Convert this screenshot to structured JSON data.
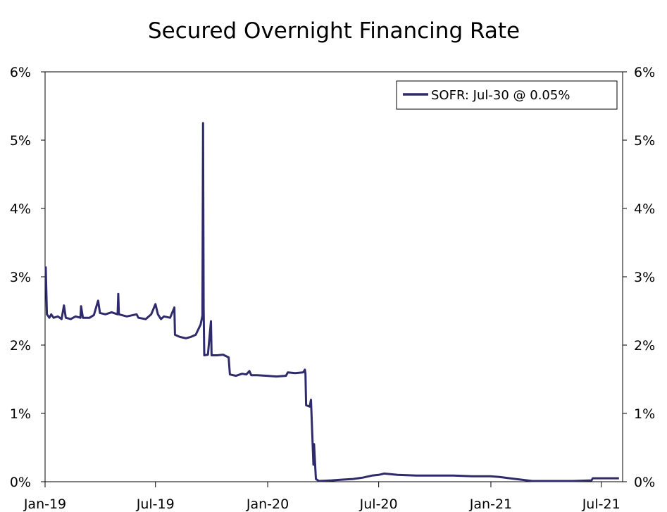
{
  "chart_data": {
    "type": "line",
    "title": "Secured Overnight Financing Rate",
    "xlabel": "",
    "ylabel": "",
    "x_ticks": [
      "Jan-19",
      "Jul-19",
      "Jan-20",
      "Jul-20",
      "Jan-21",
      "Jul-21"
    ],
    "x_tick_dates": [
      "2019-01-01",
      "2019-07-01",
      "2020-01-01",
      "2020-07-01",
      "2021-01-01",
      "2021-07-01"
    ],
    "xlim": [
      "2019-01-01",
      "2021-08-05"
    ],
    "y_ticks": [
      "0%",
      "1%",
      "2%",
      "3%",
      "4%",
      "5%",
      "6%"
    ],
    "ylim": [
      0,
      6
    ],
    "y_axis_right": true,
    "grid": false,
    "legend_position": "top-right",
    "legend": {
      "label": "SOFR: Jul-30 @ 0.05%"
    },
    "series": [
      {
        "name": "SOFR",
        "color": "#2e2a6b",
        "points": [
          [
            "2019-01-02",
            3.15
          ],
          [
            "2019-01-04",
            2.45
          ],
          [
            "2019-01-08",
            2.4
          ],
          [
            "2019-01-11",
            2.45
          ],
          [
            "2019-01-15",
            2.4
          ],
          [
            "2019-01-22",
            2.42
          ],
          [
            "2019-01-28",
            2.38
          ],
          [
            "2019-02-01",
            2.58
          ],
          [
            "2019-02-04",
            2.4
          ],
          [
            "2019-02-12",
            2.38
          ],
          [
            "2019-02-20",
            2.42
          ],
          [
            "2019-02-28",
            2.4
          ],
          [
            "2019-03-01",
            2.57
          ],
          [
            "2019-03-04",
            2.4
          ],
          [
            "2019-03-15",
            2.4
          ],
          [
            "2019-03-22",
            2.44
          ],
          [
            "2019-03-29",
            2.65
          ],
          [
            "2019-04-01",
            2.47
          ],
          [
            "2019-04-10",
            2.45
          ],
          [
            "2019-04-20",
            2.48
          ],
          [
            "2019-04-30",
            2.45
          ],
          [
            "2019-05-01",
            2.75
          ],
          [
            "2019-05-02",
            2.45
          ],
          [
            "2019-05-15",
            2.42
          ],
          [
            "2019-05-31",
            2.45
          ],
          [
            "2019-06-03",
            2.4
          ],
          [
            "2019-06-15",
            2.38
          ],
          [
            "2019-06-24",
            2.45
          ],
          [
            "2019-07-01",
            2.6
          ],
          [
            "2019-07-05",
            2.45
          ],
          [
            "2019-07-10",
            2.38
          ],
          [
            "2019-07-15",
            2.42
          ],
          [
            "2019-07-25",
            2.4
          ],
          [
            "2019-08-01",
            2.55
          ],
          [
            "2019-08-02",
            2.15
          ],
          [
            "2019-08-10",
            2.12
          ],
          [
            "2019-08-20",
            2.1
          ],
          [
            "2019-08-28",
            2.12
          ],
          [
            "2019-09-05",
            2.15
          ],
          [
            "2019-09-13",
            2.3
          ],
          [
            "2019-09-16",
            2.43
          ],
          [
            "2019-09-17",
            5.25
          ],
          [
            "2019-09-18",
            2.55
          ],
          [
            "2019-09-19",
            1.85
          ],
          [
            "2019-09-25",
            1.86
          ],
          [
            "2019-09-30",
            2.35
          ],
          [
            "2019-10-01",
            1.85
          ],
          [
            "2019-10-10",
            1.85
          ],
          [
            "2019-10-20",
            1.86
          ],
          [
            "2019-10-29",
            1.82
          ],
          [
            "2019-10-31",
            1.57
          ],
          [
            "2019-11-10",
            1.55
          ],
          [
            "2019-11-20",
            1.58
          ],
          [
            "2019-11-27",
            1.57
          ],
          [
            "2019-12-02",
            1.62
          ],
          [
            "2019-12-05",
            1.56
          ],
          [
            "2019-12-15",
            1.56
          ],
          [
            "2019-12-31",
            1.55
          ],
          [
            "2020-01-15",
            1.54
          ],
          [
            "2020-01-31",
            1.55
          ],
          [
            "2020-02-03",
            1.6
          ],
          [
            "2020-02-15",
            1.59
          ],
          [
            "2020-02-28",
            1.6
          ],
          [
            "2020-03-02",
            1.64
          ],
          [
            "2020-03-03",
            1.58
          ],
          [
            "2020-03-04",
            1.12
          ],
          [
            "2020-03-10",
            1.1
          ],
          [
            "2020-03-12",
            1.2
          ],
          [
            "2020-03-16",
            0.25
          ],
          [
            "2020-03-17",
            0.55
          ],
          [
            "2020-03-20",
            0.04
          ],
          [
            "2020-03-25",
            0.01
          ],
          [
            "2020-04-15",
            0.02
          ],
          [
            "2020-05-01",
            0.03
          ],
          [
            "2020-05-20",
            0.04
          ],
          [
            "2020-06-05",
            0.06
          ],
          [
            "2020-06-20",
            0.09
          ],
          [
            "2020-07-01",
            0.1
          ],
          [
            "2020-07-10",
            0.12
          ],
          [
            "2020-08-01",
            0.1
          ],
          [
            "2020-09-01",
            0.09
          ],
          [
            "2020-10-01",
            0.09
          ],
          [
            "2020-11-01",
            0.09
          ],
          [
            "2020-12-01",
            0.08
          ],
          [
            "2020-12-31",
            0.08
          ],
          [
            "2021-01-15",
            0.07
          ],
          [
            "2021-02-01",
            0.05
          ],
          [
            "2021-02-20",
            0.03
          ],
          [
            "2021-03-10",
            0.01
          ],
          [
            "2021-04-15",
            0.01
          ],
          [
            "2021-05-15",
            0.01
          ],
          [
            "2021-06-15",
            0.02
          ],
          [
            "2021-06-17",
            0.05
          ],
          [
            "2021-07-30",
            0.05
          ]
        ]
      }
    ]
  }
}
